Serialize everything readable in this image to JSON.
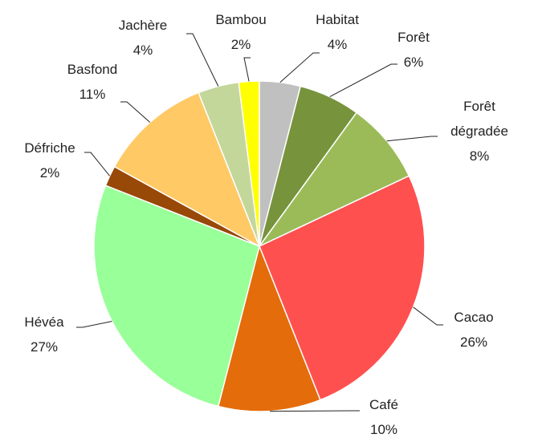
{
  "chart_data": {
    "type": "pie",
    "categories": [
      "Habitat",
      "Forêt",
      "Forêt dégradée",
      "Cacao",
      "Café",
      "Hévéa",
      "Défriche",
      "Basfond",
      "Jachère",
      "Bambou"
    ],
    "values": [
      4,
      6,
      8,
      26,
      10,
      27,
      2,
      11,
      4,
      2
    ],
    "value_labels": [
      "4%",
      "6%",
      "8%",
      "26%",
      "10%",
      "27%",
      "2%",
      "11%",
      "4%",
      "2%"
    ],
    "colors": [
      "#c0c0c0",
      "#77933c",
      "#9bbb59",
      "#ff5050",
      "#e46c0a",
      "#99ff99",
      "#984807",
      "#ffc966",
      "#c4d79b",
      "#ffff00"
    ]
  }
}
